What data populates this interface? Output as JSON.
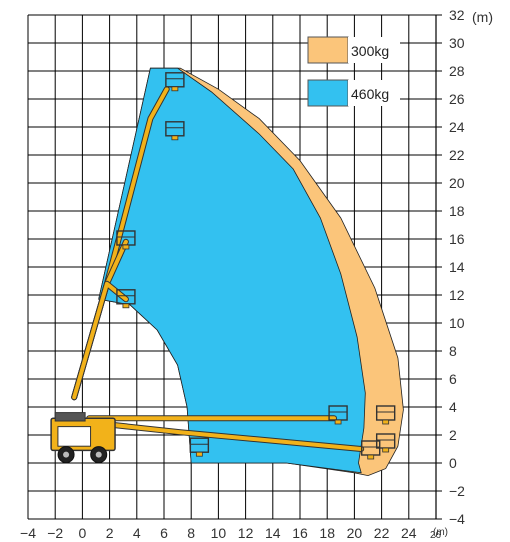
{
  "chart_data": {
    "type": "area",
    "title": "",
    "x_unit_label": "(m)",
    "y_unit_label": "(m)",
    "xlim": [
      -4,
      26
    ],
    "ylim": [
      -4,
      32
    ],
    "grid": true,
    "x_ticks": [
      {
        "value": -4,
        "label": "−4"
      },
      {
        "value": -2,
        "label": "−2"
      },
      {
        "value": 0,
        "label": "0"
      },
      {
        "value": 2,
        "label": "2"
      },
      {
        "value": 4,
        "label": "4"
      },
      {
        "value": 6,
        "label": "6"
      },
      {
        "value": 8,
        "label": "8"
      },
      {
        "value": 10,
        "label": "10"
      },
      {
        "value": 12,
        "label": "12"
      },
      {
        "value": 14,
        "label": "14"
      },
      {
        "value": 16,
        "label": "16"
      },
      {
        "value": 18,
        "label": "18"
      },
      {
        "value": 20,
        "label": "20"
      },
      {
        "value": 22,
        "label": "22"
      },
      {
        "value": 24,
        "label": "24"
      },
      {
        "value": 26,
        "label": "26"
      }
    ],
    "y_ticks": [
      {
        "value": 32,
        "label": "32"
      },
      {
        "value": 30,
        "label": "30"
      },
      {
        "value": 28,
        "label": "28"
      },
      {
        "value": 26,
        "label": "26"
      },
      {
        "value": 24,
        "label": "24"
      },
      {
        "value": 22,
        "label": "22"
      },
      {
        "value": 20,
        "label": "20"
      },
      {
        "value": 18,
        "label": "18"
      },
      {
        "value": 16,
        "label": "16"
      },
      {
        "value": 14,
        "label": "14"
      },
      {
        "value": 12,
        "label": "12"
      },
      {
        "value": 10,
        "label": "10"
      },
      {
        "value": 8,
        "label": "8"
      },
      {
        "value": 6,
        "label": "6"
      },
      {
        "value": 4,
        "label": "4"
      },
      {
        "value": 2,
        "label": "2"
      },
      {
        "value": 0,
        "label": "0"
      },
      {
        "value": -2,
        "label": "−2"
      },
      {
        "value": -4,
        "label": "−4"
      }
    ],
    "legend_position": "top-right",
    "series": [
      {
        "name": "300kg",
        "color": "#fbc57a",
        "points": [
          [
            5,
            28.2
          ],
          [
            7.2,
            28.2
          ],
          [
            10,
            26.7
          ],
          [
            13,
            24.6
          ],
          [
            16,
            21.6
          ],
          [
            19,
            17.5
          ],
          [
            21.5,
            12.5
          ],
          [
            23.2,
            7.5
          ],
          [
            23.6,
            3.8
          ],
          [
            23.2,
            1.2
          ],
          [
            22.3,
            -0.4
          ],
          [
            21,
            -0.9
          ],
          [
            20,
            -0.7
          ],
          [
            15,
            0
          ],
          [
            8,
            0
          ],
          [
            7.7,
            4
          ],
          [
            7,
            7
          ],
          [
            5.5,
            9.5
          ],
          [
            3.5,
            11.3
          ],
          [
            1.2,
            11.7
          ]
        ]
      },
      {
        "name": "460kg",
        "color": "#33c1f0",
        "points": [
          [
            5,
            28.2
          ],
          [
            7,
            28.2
          ],
          [
            9.5,
            26.5
          ],
          [
            13,
            23.5
          ],
          [
            15.5,
            21
          ],
          [
            17.5,
            17.5
          ],
          [
            19,
            13.5
          ],
          [
            20.2,
            9
          ],
          [
            20.8,
            5
          ],
          [
            20.7,
            2.5
          ],
          [
            20.3,
            0
          ],
          [
            20.5,
            -0.7
          ],
          [
            15,
            0
          ],
          [
            8,
            0
          ],
          [
            7.7,
            4
          ],
          [
            7,
            7
          ],
          [
            5.5,
            9.5
          ],
          [
            3.5,
            11.3
          ],
          [
            1.2,
            11.7
          ]
        ]
      }
    ],
    "machine": {
      "boom_color": "#f2b21a",
      "booms": [
        [
          [
            -0.6,
            4.7
          ],
          [
            1.8,
            12.8
          ],
          [
            5,
            24.6
          ],
          [
            6.2,
            26.7
          ]
        ],
        [
          [
            -0.6,
            4.7
          ],
          [
            1.8,
            12.8
          ],
          [
            3.2,
            15.8
          ]
        ],
        [
          [
            -0.6,
            4.7
          ],
          [
            1.8,
            12.8
          ],
          [
            3.2,
            11.7
          ]
        ],
        [
          [
            0.5,
            3.2
          ],
          [
            18.5,
            3.2
          ]
        ],
        [
          [
            0.5,
            2.9
          ],
          [
            7.2,
            2.2
          ],
          [
            20.5,
            1.0
          ]
        ]
      ],
      "platforms": [
        [
          6.8,
          27.3
        ],
        [
          6.8,
          23.8
        ],
        [
          3.2,
          16.0
        ],
        [
          3.2,
          11.8
        ],
        [
          18.8,
          3.5
        ],
        [
          22.3,
          3.5
        ],
        [
          21.2,
          1.0
        ],
        [
          22.3,
          1.5
        ],
        [
          8.6,
          1.2
        ]
      ]
    }
  },
  "legend": [
    {
      "label": "300kg",
      "color": "#fbc57a"
    },
    {
      "label": "460kg",
      "color": "#33c1f0"
    }
  ]
}
